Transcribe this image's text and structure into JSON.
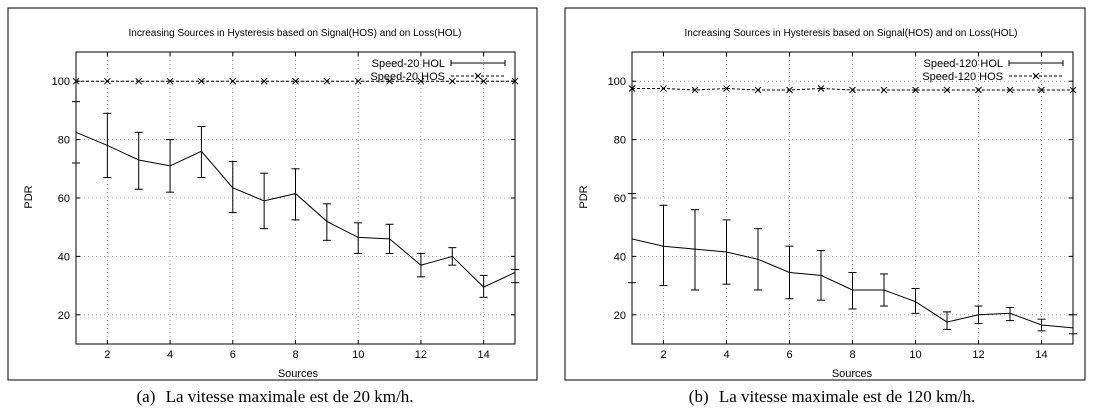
{
  "chart_data": [
    {
      "type": "line",
      "panel": "(a)",
      "caption": "La vitesse maximale est de 20 km/h.",
      "title": "Increasing Sources in Hysteresis based on Signal(HOS) and on Loss(HOL)",
      "xlabel": "Sources",
      "ylabel": "PDR",
      "xlim": [
        1,
        15
      ],
      "ylim": [
        10,
        110
      ],
      "xticks": [
        2,
        4,
        6,
        8,
        10,
        12,
        14
      ],
      "yticks": [
        20,
        40,
        60,
        80,
        100
      ],
      "grid": true,
      "legend_position": "top-right",
      "series": [
        {
          "name": "Speed-20 HOL",
          "style": "solid-errorbars",
          "x": [
            1,
            2,
            3,
            4,
            5,
            6,
            7,
            8,
            9,
            10,
            11,
            12,
            13,
            14,
            15
          ],
          "y": [
            82.5,
            78,
            73,
            71,
            76,
            63.5,
            59,
            61.5,
            52,
            46.5,
            46,
            37,
            40,
            29.5,
            34.5
          ],
          "err_low": [
            72,
            67,
            63,
            62,
            67,
            55,
            49.5,
            52.5,
            45.5,
            41,
            41,
            33,
            37,
            26,
            31
          ],
          "err_high": [
            93,
            89,
            82.5,
            80,
            84.5,
            72.5,
            68.5,
            70,
            58,
            51.5,
            51,
            41,
            43,
            33.5,
            35.5
          ]
        },
        {
          "name": "Speed-20 HOS",
          "style": "dashed-x-markers",
          "x": [
            1,
            2,
            3,
            4,
            5,
            6,
            7,
            8,
            9,
            10,
            11,
            12,
            13,
            14,
            15
          ],
          "y": [
            100,
            100,
            100,
            100,
            100,
            100,
            100,
            100,
            100,
            100,
            100,
            100,
            100,
            100,
            100
          ]
        }
      ]
    },
    {
      "type": "line",
      "panel": "(b)",
      "caption": "La vitesse maximale est de 120 km/h.",
      "title": "Increasing Sources in Hysteresis based on Signal(HOS) and on Loss(HOL)",
      "xlabel": "Sources",
      "ylabel": "PDR",
      "xlim": [
        1,
        15
      ],
      "ylim": [
        10,
        110
      ],
      "xticks": [
        2,
        4,
        6,
        8,
        10,
        12,
        14
      ],
      "yticks": [
        20,
        40,
        60,
        80,
        100
      ],
      "grid": true,
      "legend_position": "top-right",
      "series": [
        {
          "name": "Speed-120 HOL",
          "style": "solid-errorbars",
          "x": [
            1,
            2,
            3,
            4,
            5,
            6,
            7,
            8,
            9,
            10,
            11,
            12,
            13,
            14,
            15
          ],
          "y": [
            46,
            43.5,
            42.5,
            41.5,
            39,
            34.5,
            33.5,
            28.5,
            28.5,
            24.5,
            17.5,
            20,
            20.5,
            16.5,
            15.5
          ],
          "err_low": [
            31,
            30,
            28.5,
            30.5,
            28.5,
            25.5,
            25,
            22,
            23,
            20.5,
            15,
            17,
            18,
            14.5,
            13.5
          ],
          "err_high": [
            61.5,
            57.5,
            56,
            52.5,
            49.5,
            43.5,
            42,
            34.5,
            34,
            29,
            21,
            23,
            22.5,
            18.5,
            20
          ]
        },
        {
          "name": "Speed-120 HOS",
          "style": "dashed-x-markers",
          "x": [
            1,
            2,
            3,
            4,
            5,
            6,
            7,
            8,
            9,
            10,
            11,
            12,
            13,
            14,
            15
          ],
          "y": [
            97.5,
            97.5,
            97,
            97.5,
            97,
            97,
            97.5,
            97,
            97,
            97,
            97,
            97,
            97,
            97,
            97
          ]
        }
      ]
    }
  ]
}
